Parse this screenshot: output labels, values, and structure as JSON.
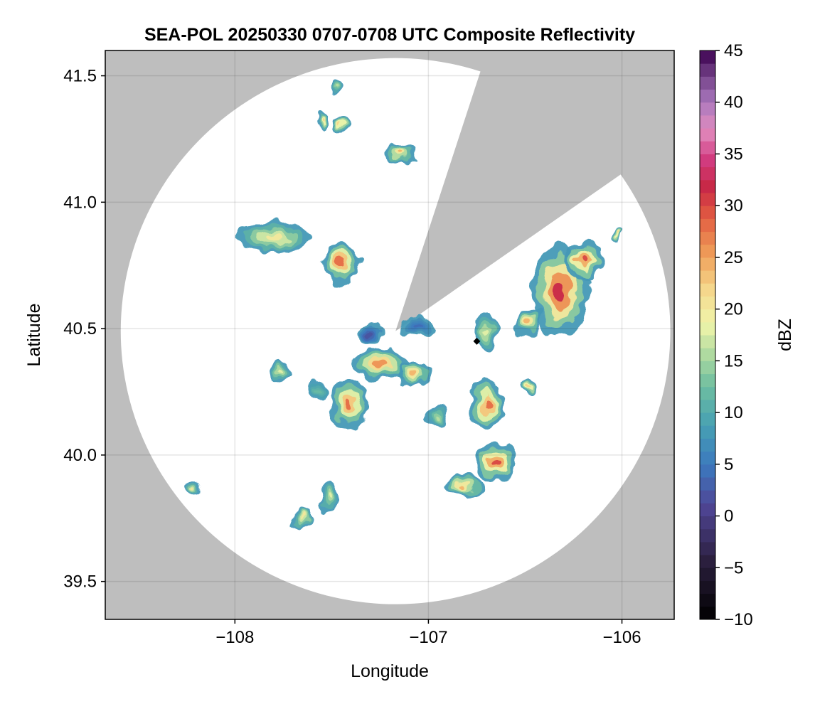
{
  "chart_data": {
    "type": "heatmap",
    "title": "SEA-POL 20250330 0707-0708 UTC Composite Reflectivity",
    "xlabel": "Longitude",
    "ylabel": "Latitude",
    "xlim": [
      -108.67,
      -105.73
    ],
    "ylim": [
      39.35,
      41.6
    ],
    "xticks": [
      -108,
      -107,
      -106
    ],
    "xtick_labels": [
      "−108",
      "−107",
      "−106"
    ],
    "yticks": [
      39.5,
      40.0,
      40.5,
      41.0,
      41.5
    ],
    "ytick_labels": [
      "39.5",
      "40.0",
      "40.5",
      "41.0",
      "41.5"
    ],
    "grid": true,
    "background_color": "#bebebe",
    "coverage_color": "#ffffff",
    "radar_center": [
      -107.17,
      40.49
    ],
    "radar_max_range_lon_deg": 1.42,
    "radar_max_range_lat_deg": 1.08,
    "blocked_sectors_deg_from_north": [
      [
        18,
        55
      ]
    ],
    "radar_site_marker": [
      -106.75,
      40.45
    ],
    "colorbar": {
      "label": "dBZ",
      "min": -10,
      "max": 45,
      "step": 1.25,
      "ticks": [
        -10,
        -5,
        0,
        5,
        10,
        15,
        20,
        25,
        30,
        35,
        40,
        45
      ],
      "tick_labels": [
        "−10",
        "−5",
        "0",
        "5",
        "10",
        "15",
        "20",
        "25",
        "30",
        "35",
        "40",
        "45"
      ],
      "colormap": "spectral_r"
    },
    "cells": [
      {
        "lon": -108.22,
        "lat": 39.87,
        "rx": 0.05,
        "ry": 0.03,
        "peak_dbz": 20
      },
      {
        "lon": -107.65,
        "lat": 39.75,
        "rx": 0.05,
        "ry": 0.04,
        "peak_dbz": 20
      },
      {
        "lon": -107.52,
        "lat": 39.84,
        "rx": 0.05,
        "ry": 0.07,
        "peak_dbz": 18
      },
      {
        "lon": -107.8,
        "lat": 40.86,
        "rx": 0.2,
        "ry": 0.06,
        "peak_dbz": 20
      },
      {
        "lon": -107.45,
        "lat": 40.76,
        "rx": 0.1,
        "ry": 0.09,
        "peak_dbz": 28
      },
      {
        "lon": -107.15,
        "lat": 41.19,
        "rx": 0.08,
        "ry": 0.04,
        "peak_dbz": 24
      },
      {
        "lon": -107.55,
        "lat": 41.33,
        "rx": 0.04,
        "ry": 0.03,
        "peak_dbz": 22
      },
      {
        "lon": -107.45,
        "lat": 41.3,
        "rx": 0.04,
        "ry": 0.04,
        "peak_dbz": 22
      },
      {
        "lon": -107.48,
        "lat": 41.45,
        "rx": 0.03,
        "ry": 0.03,
        "peak_dbz": 16
      },
      {
        "lon": -107.3,
        "lat": 40.48,
        "rx": 0.06,
        "ry": 0.04,
        "peak_dbz": 2
      },
      {
        "lon": -107.05,
        "lat": 40.51,
        "rx": 0.1,
        "ry": 0.04,
        "peak_dbz": 4
      },
      {
        "lon": -107.41,
        "lat": 40.2,
        "rx": 0.1,
        "ry": 0.1,
        "peak_dbz": 28
      },
      {
        "lon": -107.25,
        "lat": 40.36,
        "rx": 0.15,
        "ry": 0.06,
        "peak_dbz": 26
      },
      {
        "lon": -107.07,
        "lat": 40.32,
        "rx": 0.09,
        "ry": 0.05,
        "peak_dbz": 24
      },
      {
        "lon": -107.57,
        "lat": 40.26,
        "rx": 0.05,
        "ry": 0.04,
        "peak_dbz": 12
      },
      {
        "lon": -107.77,
        "lat": 40.33,
        "rx": 0.05,
        "ry": 0.04,
        "peak_dbz": 18
      },
      {
        "lon": -106.95,
        "lat": 40.15,
        "rx": 0.06,
        "ry": 0.05,
        "peak_dbz": 16
      },
      {
        "lon": -106.7,
        "lat": 40.2,
        "rx": 0.09,
        "ry": 0.1,
        "peak_dbz": 28
      },
      {
        "lon": -106.7,
        "lat": 40.48,
        "rx": 0.06,
        "ry": 0.08,
        "peak_dbz": 18
      },
      {
        "lon": -106.32,
        "lat": 40.65,
        "rx": 0.15,
        "ry": 0.18,
        "peak_dbz": 32
      },
      {
        "lon": -106.2,
        "lat": 40.77,
        "rx": 0.1,
        "ry": 0.07,
        "peak_dbz": 30
      },
      {
        "lon": -106.48,
        "lat": 40.53,
        "rx": 0.07,
        "ry": 0.06,
        "peak_dbz": 24
      },
      {
        "lon": -106.65,
        "lat": 39.97,
        "rx": 0.1,
        "ry": 0.08,
        "peak_dbz": 30
      },
      {
        "lon": -106.82,
        "lat": 39.88,
        "rx": 0.1,
        "ry": 0.05,
        "peak_dbz": 24
      },
      {
        "lon": -106.48,
        "lat": 40.27,
        "rx": 0.04,
        "ry": 0.03,
        "peak_dbz": 22
      },
      {
        "lon": -106.03,
        "lat": 40.87,
        "rx": 0.02,
        "ry": 0.02,
        "peak_dbz": 22
      }
    ]
  }
}
